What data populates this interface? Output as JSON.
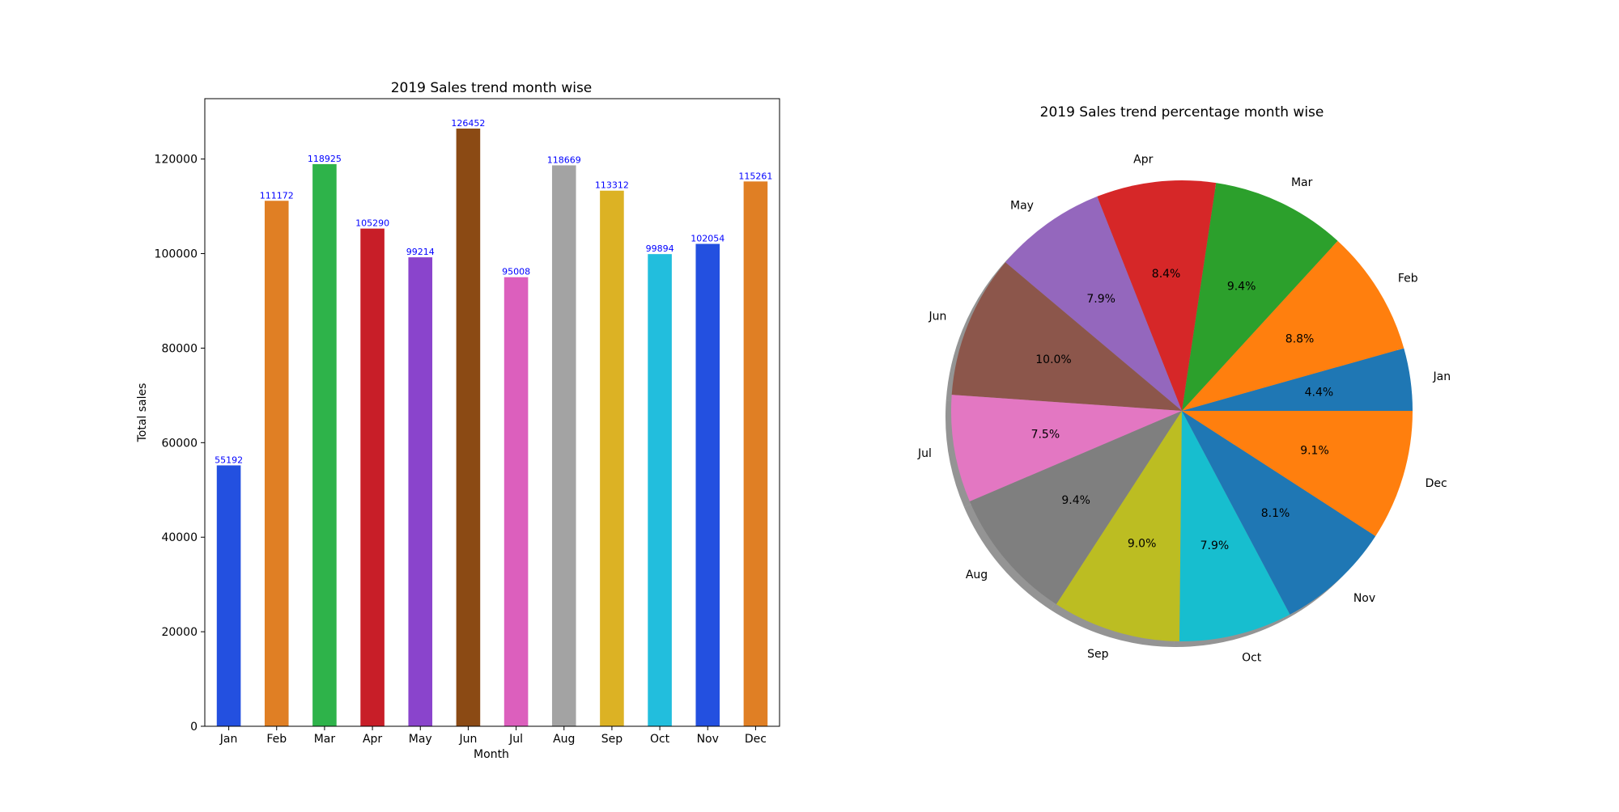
{
  "chart_data": [
    {
      "type": "bar",
      "title": "2019 Sales trend month wise",
      "xlabel": "Month",
      "ylabel": "Total sales",
      "categories": [
        "Jan",
        "Feb",
        "Mar",
        "Apr",
        "May",
        "Jun",
        "Jul",
        "Aug",
        "Sep",
        "Oct",
        "Nov",
        "Dec"
      ],
      "values": [
        55192,
        111172,
        118925,
        105290,
        99214,
        126452,
        95008,
        118669,
        113312,
        99894,
        102054,
        115261
      ],
      "data_labels": [
        "55192",
        "111172",
        "118925",
        "105290",
        "99214",
        "126452",
        "95008",
        "118669",
        "113312",
        "99894",
        "102054",
        "115261"
      ],
      "ylim": [
        0,
        132774
      ],
      "yticks": [
        0,
        20000,
        40000,
        60000,
        80000,
        100000,
        120000
      ],
      "ytick_labels": [
        "0",
        "20000",
        "40000",
        "60000",
        "80000",
        "100000",
        "120000"
      ],
      "colors": [
        "#2350e0",
        "#e07f24",
        "#2eb34a",
        "#c81e28",
        "#8a44cc",
        "#8b4a14",
        "#dc5fbd",
        "#a3a3a3",
        "#dcb224",
        "#22bedd",
        "#2350e0",
        "#e07f24"
      ],
      "grid": false,
      "legend": "none"
    },
    {
      "type": "pie",
      "title": "2019 Sales trend percentage month wise",
      "categories": [
        "Jan",
        "Feb",
        "Mar",
        "Apr",
        "May",
        "Jun",
        "Jul",
        "Aug",
        "Sep",
        "Oct",
        "Nov",
        "Dec"
      ],
      "values": [
        55192,
        111172,
        118925,
        105290,
        99214,
        126452,
        95008,
        118669,
        113312,
        99894,
        102054,
        115261
      ],
      "percent_labels": [
        "4.4%",
        "8.8%",
        "9.4%",
        "8.4%",
        "7.9%",
        "10.0%",
        "7.5%",
        "9.4%",
        "9.0%",
        "7.9%",
        "8.1%",
        "9.1%"
      ],
      "colors": [
        "#1f77b4",
        "#ff7f0e",
        "#2ca02c",
        "#d62728",
        "#9467bd",
        "#8c564b",
        "#e377c2",
        "#7f7f7f",
        "#bcbd22",
        "#17becf",
        "#1f77b4",
        "#ff7f0e"
      ],
      "shadow": true,
      "start_angle_deg": 0,
      "direction": "counterclockwise",
      "legend": "none"
    }
  ]
}
